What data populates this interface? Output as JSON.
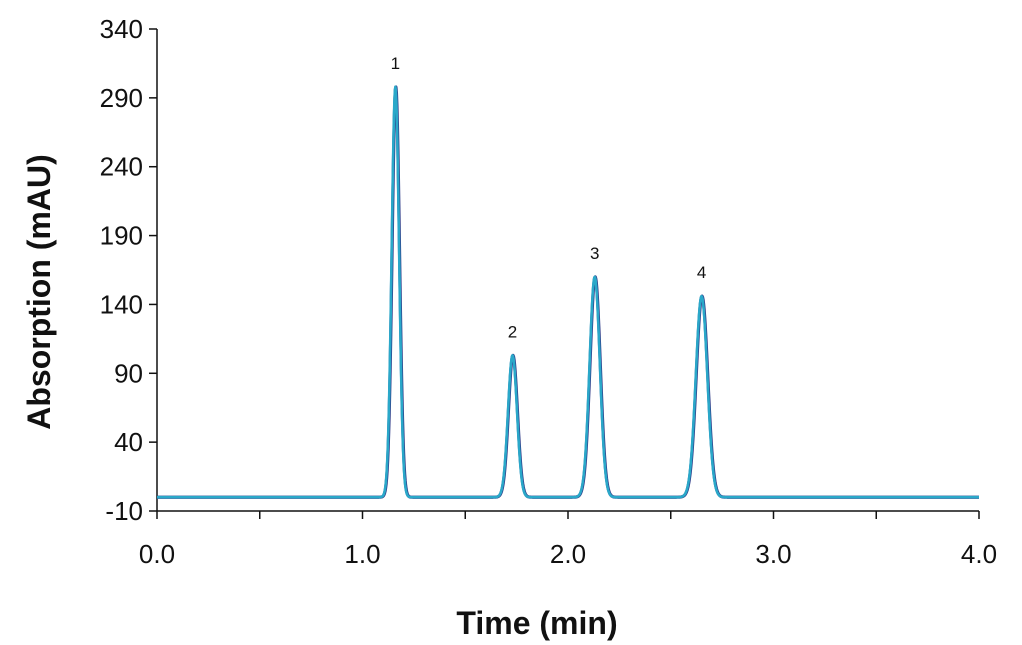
{
  "chart_data": {
    "type": "line",
    "xlabel": "Time (min)",
    "ylabel": "Absorption (mAU)",
    "xlim": [
      0.0,
      4.0
    ],
    "ylim": [
      -10,
      340
    ],
    "x_ticks": [
      "0.0",
      "1.0",
      "2.0",
      "3.0",
      "4.0"
    ],
    "y_ticks": [
      "-10",
      "40",
      "90",
      "140",
      "190",
      "240",
      "290",
      "340"
    ],
    "baseline": 0,
    "peaks": [
      {
        "label": "1",
        "time": 1.16,
        "height": 298,
        "width": 0.018
      },
      {
        "label": "2",
        "time": 1.73,
        "height": 103,
        "width": 0.022
      },
      {
        "label": "3",
        "time": 2.13,
        "height": 160,
        "width": 0.025
      },
      {
        "label": "4",
        "time": 2.65,
        "height": 146,
        "width": 0.028
      }
    ],
    "series": [
      {
        "color": "#2e3a87"
      },
      {
        "color": "#2aa8c9"
      }
    ],
    "axis_color": "#111111"
  }
}
